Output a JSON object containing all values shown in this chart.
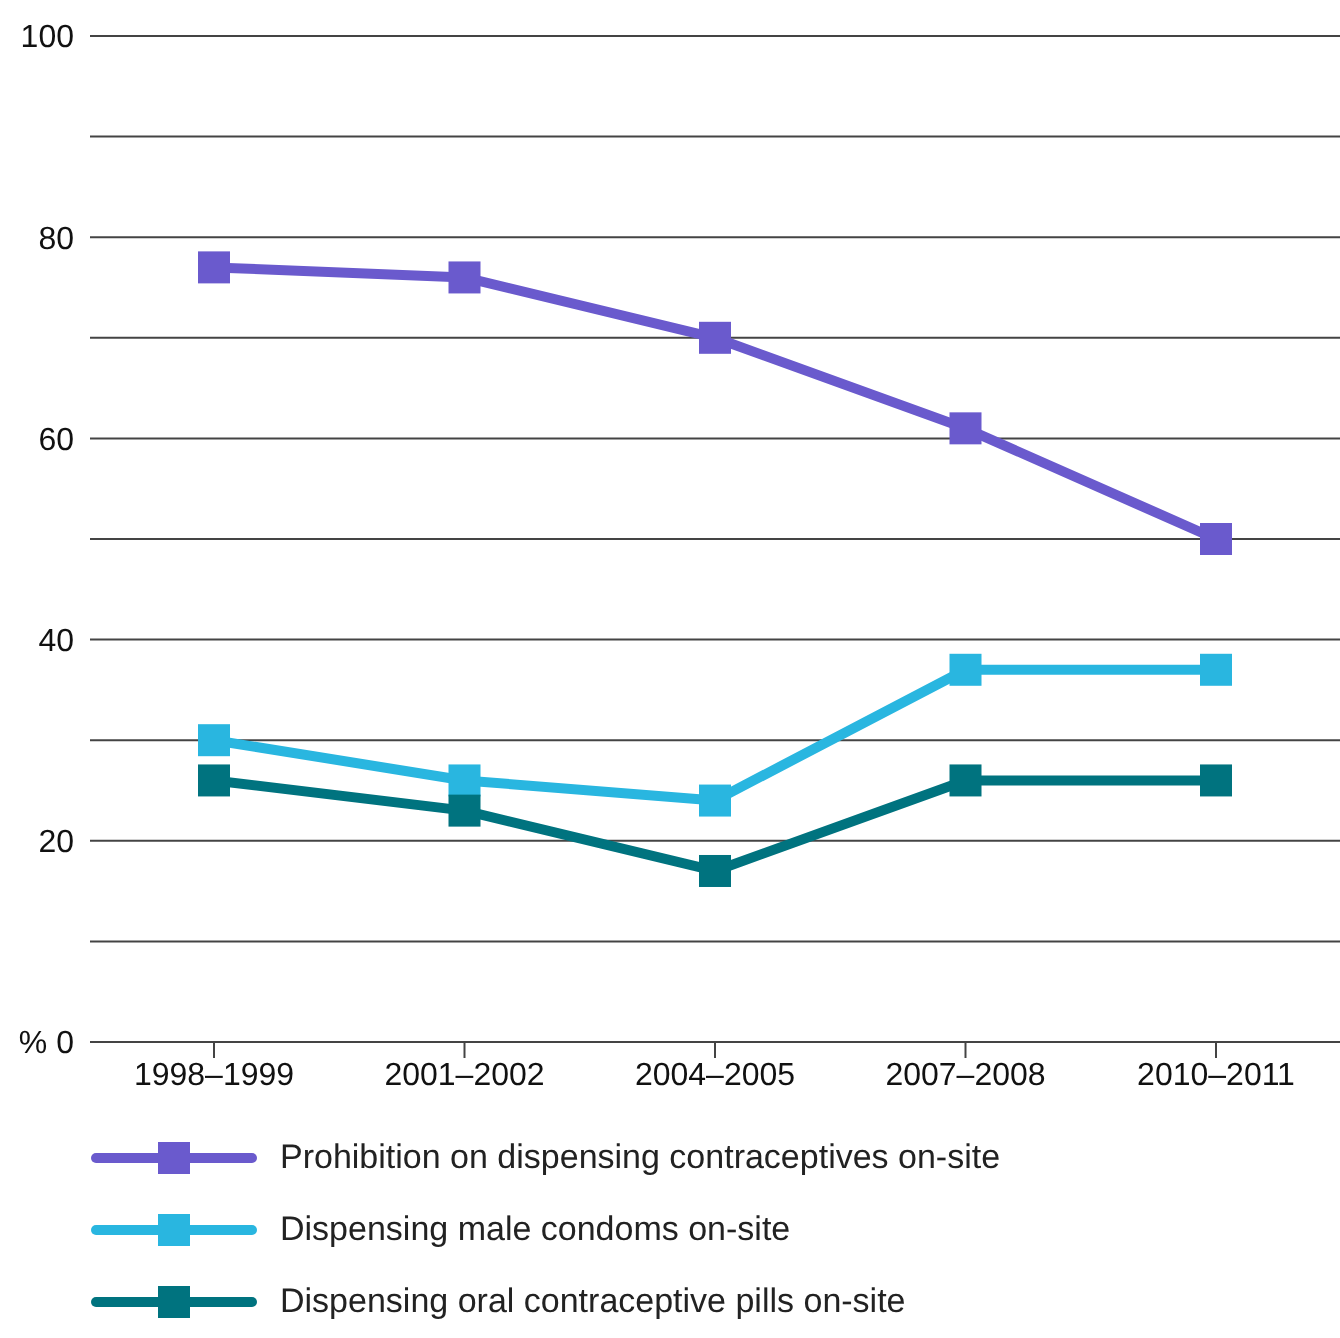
{
  "chart_data": {
    "type": "line",
    "categories": [
      "1998–1999",
      "2001–2002",
      "2004–2005",
      "2007–2008",
      "2010–2011"
    ],
    "series": [
      {
        "name": "Prohibition on dispensing contraceptives on-site",
        "color": "#6a5acd",
        "values": [
          77,
          76,
          70,
          61,
          50
        ]
      },
      {
        "name": "Dispensing male condoms on-site",
        "color": "#29b6e0",
        "values": [
          30,
          26,
          24,
          37,
          37
        ]
      },
      {
        "name": "Dispensing oral contraceptive pills on-site",
        "color": "#00737f",
        "values": [
          26,
          23,
          17,
          26,
          26
        ]
      }
    ],
    "ylim": [
      0,
      100
    ],
    "yticks": [
      {
        "value": 0,
        "label": "% 0"
      },
      {
        "value": 10,
        "label": null
      },
      20,
      {
        "value": 30,
        "label": null
      },
      40,
      {
        "value": 50,
        "label": null
      },
      60,
      {
        "value": 70,
        "label": null
      },
      80,
      {
        "value": 90,
        "label": null
      },
      100
    ],
    "grid": "y",
    "legend": "bottom",
    "marker": "square",
    "line_style": "solid"
  }
}
